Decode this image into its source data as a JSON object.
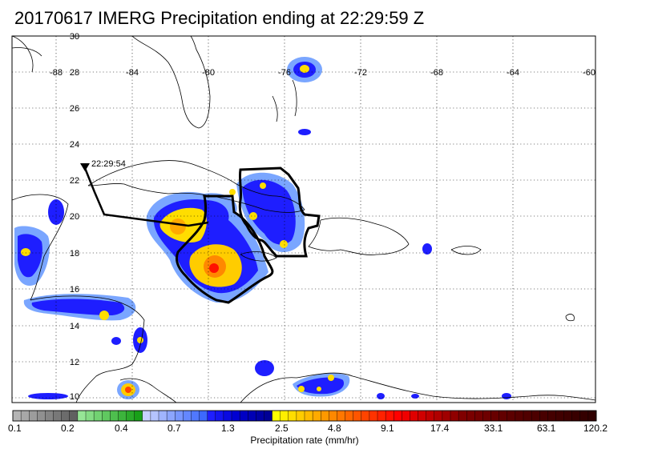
{
  "title": "20170617 IMERG Precipitation ending at 22:29:59 Z",
  "map": {
    "lon_ticks": [
      "-88",
      "-84",
      "-80",
      "-76",
      "-72",
      "-68",
      "-64",
      "-60"
    ],
    "lat_ticks": [
      "30",
      "28",
      "26",
      "24",
      "22",
      "20",
      "18",
      "16",
      "14",
      "12",
      "10"
    ],
    "track_label": "22:29:54"
  },
  "colorbar": {
    "title": "Precipitation rate (mm/hr)",
    "tick_labels": [
      "0.1",
      "0.2",
      "0.4",
      "0.7",
      "1.3",
      "2.5",
      "4.8",
      "9.1",
      "17.4",
      "33.1",
      "63.1",
      "120.2"
    ],
    "colors": [
      "#b4b4b4",
      "#a8a8a8",
      "#9c9c9c",
      "#909090",
      "#848484",
      "#787878",
      "#6c6c6c",
      "#606060",
      "#96e696",
      "#84dc84",
      "#72d272",
      "#60c860",
      "#4ebe4e",
      "#3cb43c",
      "#2aaa2a",
      "#18a018",
      "#c8d2ff",
      "#b4c3ff",
      "#a0b4ff",
      "#8ca5ff",
      "#7896ff",
      "#6487ff",
      "#5078ff",
      "#3c69ff",
      "#1e1eff",
      "#1414f0",
      "#0a0ae1",
      "#0000d2",
      "#0000c3",
      "#0000b4",
      "#0000a5",
      "#000096",
      "#ffff00",
      "#ffee00",
      "#ffdd00",
      "#ffcc00",
      "#ffbb00",
      "#ffaa00",
      "#ff9900",
      "#ff8800",
      "#ff7700",
      "#ff6600",
      "#ff5500",
      "#ff4400",
      "#ff3300",
      "#ff2200",
      "#ff1100",
      "#ff0000",
      "#f00000",
      "#e00000",
      "#d00000",
      "#c00000",
      "#b00000",
      "#a00000",
      "#900000",
      "#800000",
      "#7a0000",
      "#740000",
      "#6e0000",
      "#680000",
      "#620000",
      "#5c0000",
      "#560000",
      "#500000",
      "#4c0000",
      "#480000",
      "#440000",
      "#400000",
      "#3c0000",
      "#380000",
      "#340000",
      "#300000"
    ]
  },
  "colors": {
    "track": "#000000",
    "coast": "#000000",
    "grid": "#000000"
  }
}
